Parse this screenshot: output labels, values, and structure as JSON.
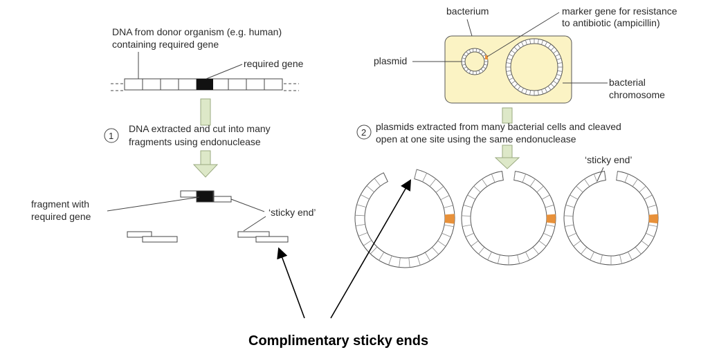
{
  "left": {
    "donor_label_line1": "DNA from donor organism (e.g. human)",
    "donor_label_line2": "containing required gene",
    "required_gene": "required gene",
    "step_number": "1",
    "step_line1": "DNA extracted and cut into many",
    "step_line2": "fragments using endonuclease",
    "fragment_label_line1": "fragment with",
    "fragment_label_line2": "required gene",
    "sticky_end": "‘sticky end’"
  },
  "right": {
    "bacterium": "bacterium",
    "marker_line1": "marker gene for resistance",
    "marker_line2": "to antibiotic (ampicillin)",
    "plasmid": "plasmid",
    "chromosome_line1": "bacterial",
    "chromosome_line2": "chromosome",
    "step_number": "2",
    "step_line1": "plasmids extracted from many bacterial cells and cleaved",
    "step_line2": "open at one site using the same endonuclease",
    "sticky_end": "‘sticky end’"
  },
  "caption": "Complimentary sticky ends",
  "colors": {
    "cell_fill": "#fbf3c4",
    "marker": "#e8913a",
    "arrow_fill": "#dde8c8",
    "gene": "#111111"
  }
}
